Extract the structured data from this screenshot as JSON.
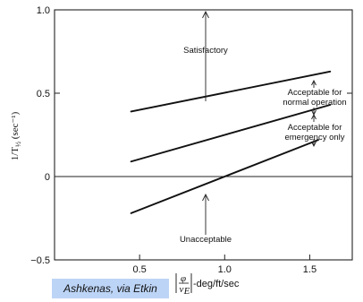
{
  "chart_data": {
    "type": "line",
    "title": "",
    "ylabel": "1/T",
    "ylabel_sub": "½",
    "ylabel_unit": "(sec⁻¹)",
    "xlabel": "-deg/ft/sec",
    "xlabel_var_num": "φ",
    "xlabel_var_den": "v",
    "xlabel_var_den_sub": "E",
    "xlim": [
      0,
      1.75
    ],
    "ylim": [
      -0.5,
      1.0
    ],
    "grid": false,
    "x_ticks": [
      {
        "value": 0.5,
        "label": "0.5"
      },
      {
        "value": 1.0,
        "label": "1.0"
      },
      {
        "value": 1.5,
        "label": "1.5"
      }
    ],
    "y_ticks": [
      {
        "value": -0.5,
        "label": "−0.5"
      },
      {
        "value": 0,
        "label": "0"
      },
      {
        "value": 0.5,
        "label": "0.5"
      },
      {
        "value": 1.0,
        "label": "1.0"
      }
    ],
    "series": [
      {
        "x": [
          0.45,
          1.62
        ],
        "y": [
          0.39,
          0.63
        ]
      },
      {
        "x": [
          0.45,
          1.62
        ],
        "y": [
          0.09,
          0.43
        ]
      },
      {
        "x": [
          0.45,
          1.55
        ],
        "y": [
          -0.22,
          0.22
        ]
      }
    ],
    "annotations": [
      {
        "text": "Satisfactory"
      },
      {
        "text": "Acceptable for"
      },
      {
        "text": "normal operation"
      },
      {
        "text": "Acceptable for"
      },
      {
        "text": "emergency only"
      },
      {
        "text": "Unacceptable"
      }
    ]
  },
  "credit": "Ashkenas, via Etkin"
}
